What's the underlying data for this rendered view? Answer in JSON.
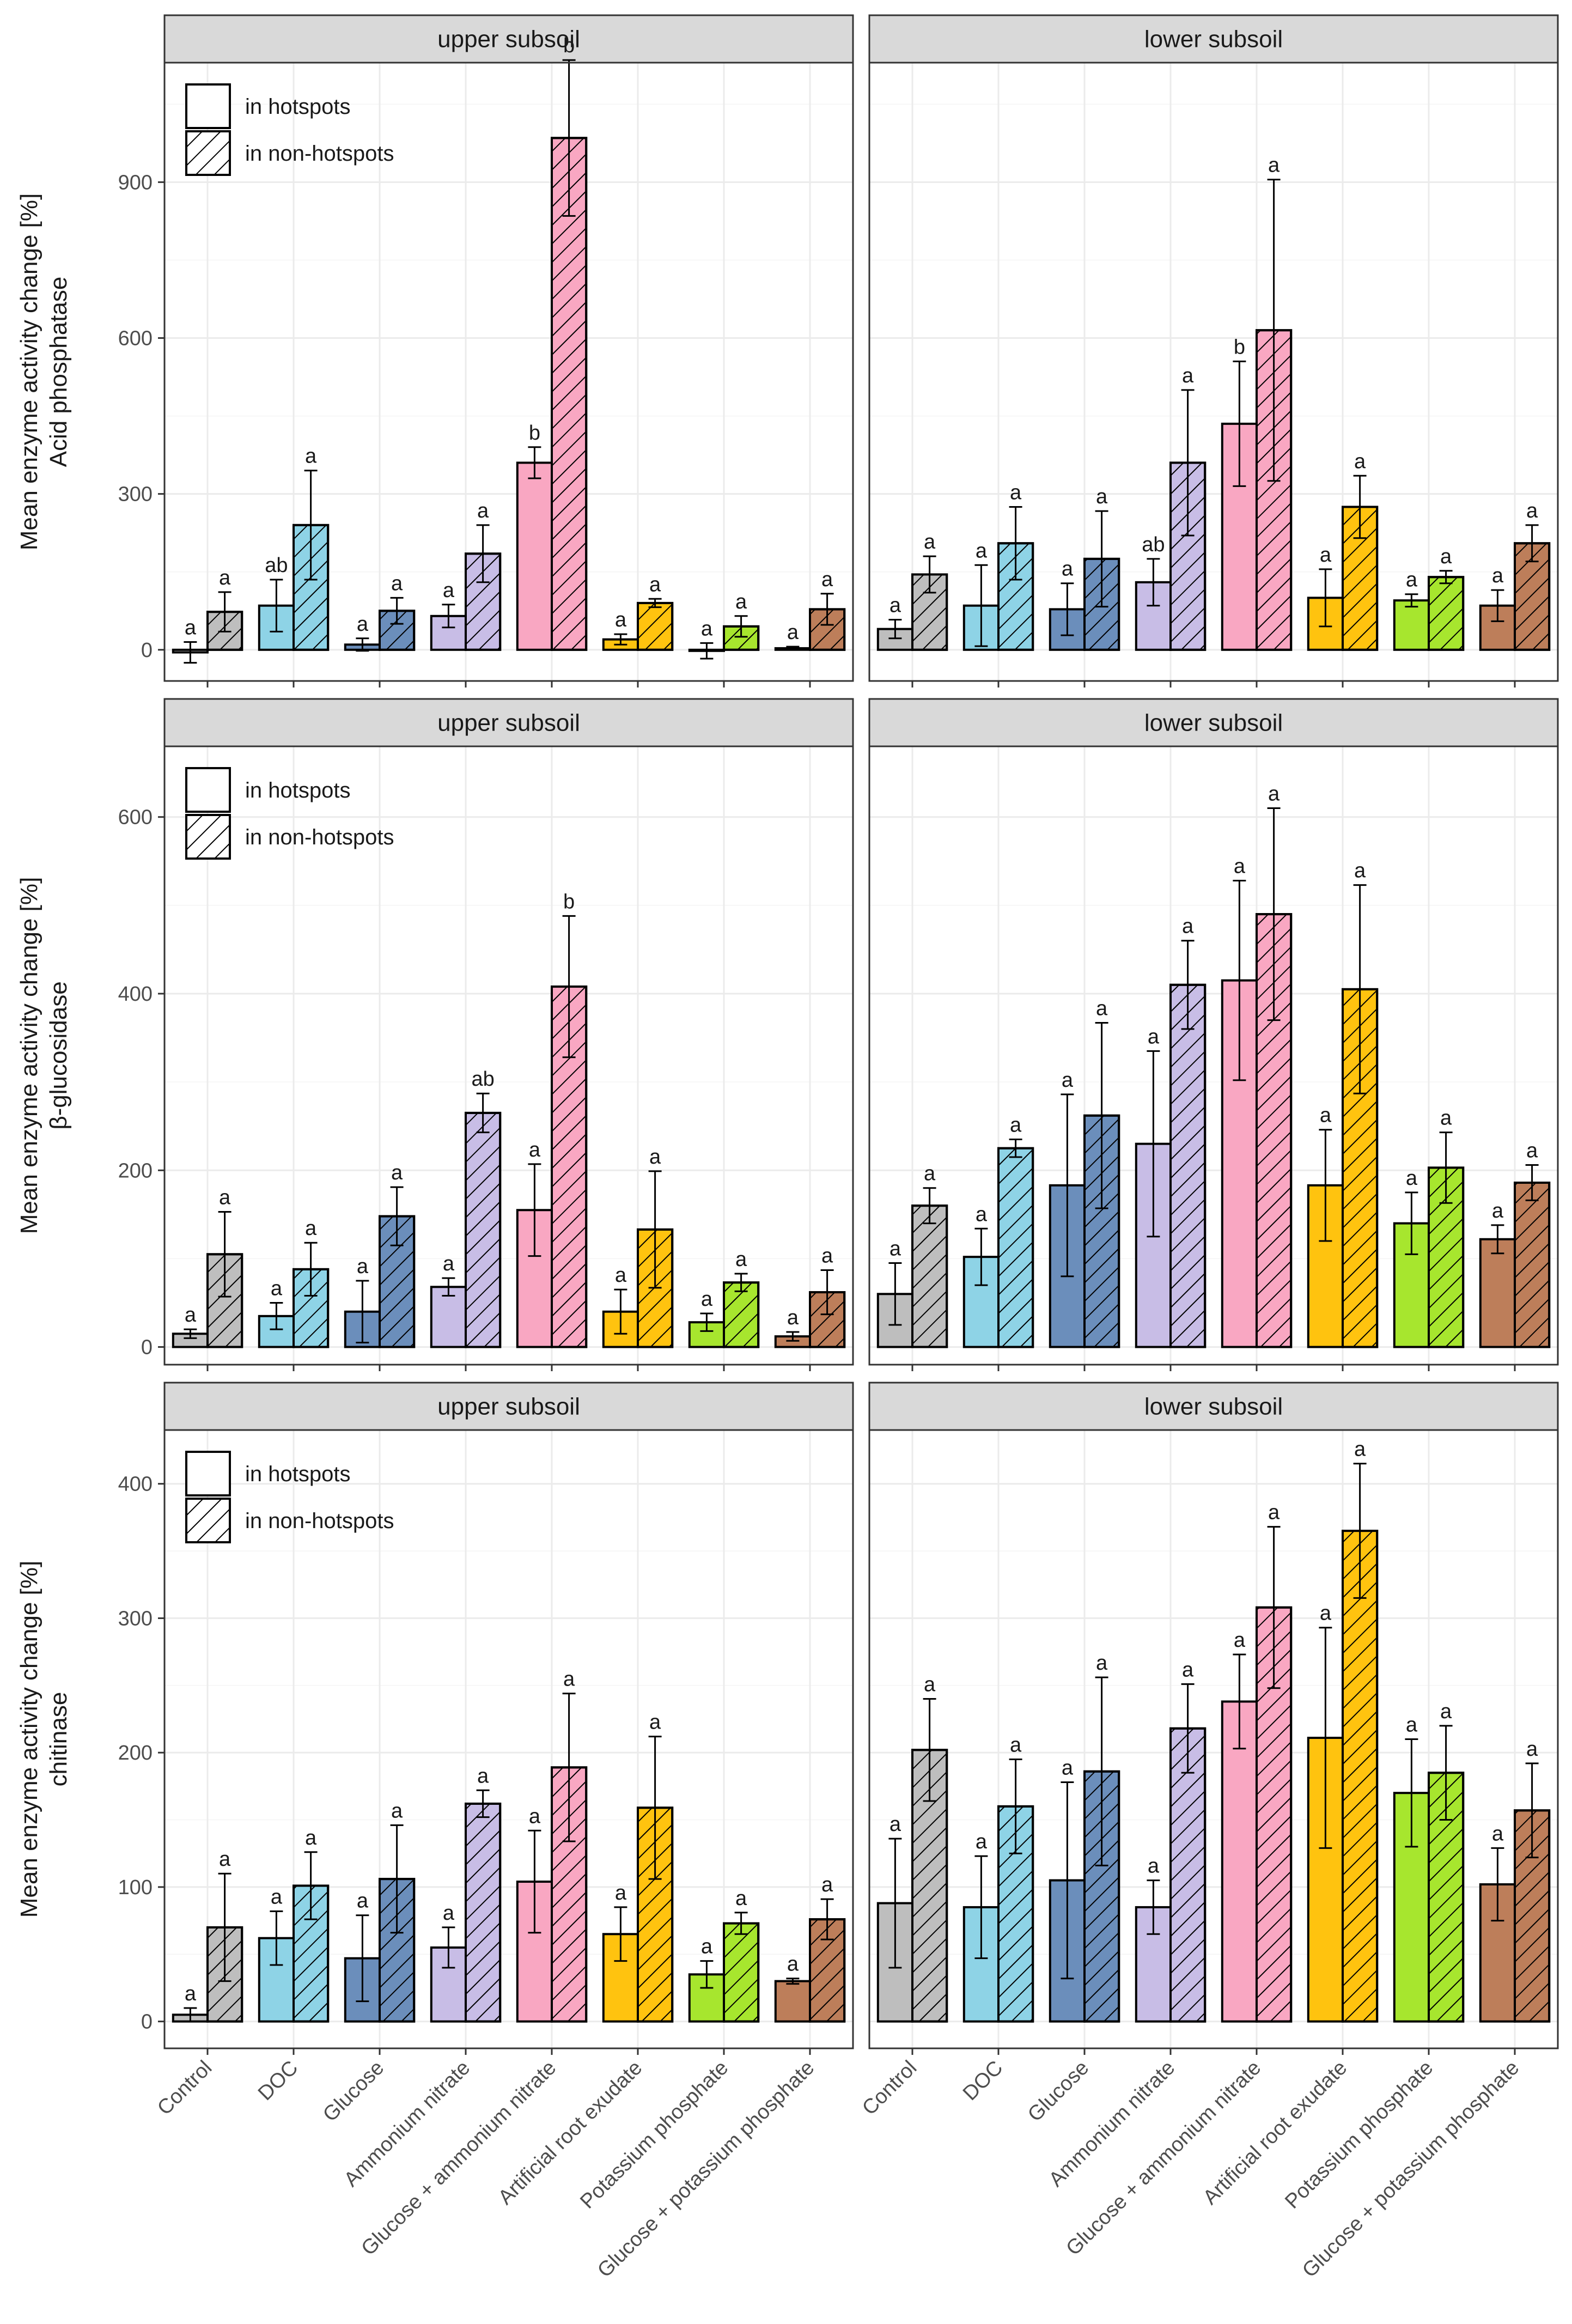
{
  "chart_data": {
    "type": "bar",
    "facet_rows": [
      "Acid phosphatase",
      "β-glucosidase",
      "chitinase"
    ],
    "facet_cols": [
      "upper subsoil",
      "lower subsoil"
    ],
    "ylabel_main": "Mean enzyme activity change [%]",
    "legend": {
      "position": "top-left",
      "items": [
        "in hotspots",
        "in non-hotspots"
      ]
    },
    "categories": [
      "Control",
      "DOC",
      "Glucose",
      "Ammonium nitrate",
      "Glucose + ammonium nitrate",
      "Artificial root exudate",
      "Potassium phosphate",
      "Glucose + potassium phosphate"
    ],
    "colors": [
      "#bebebe",
      "#8ed3e6",
      "#6b8ebb",
      "#c8bde6",
      "#f9a7c2",
      "#ffc30f",
      "#a7e62e",
      "#bd7e5a"
    ],
    "rows": [
      {
        "enzyme": "Acid phosphatase",
        "ylim": [
          -60,
          1130
        ],
        "yticks": [
          0,
          300,
          600,
          900
        ],
        "panels": [
          {
            "facet": "upper subsoil",
            "hot": [
              -5,
              85,
              10,
              65,
              360,
              20,
              -2,
              3
            ],
            "hot_err": [
              20,
              50,
              12,
              22,
              30,
              10,
              15,
              3
            ],
            "hot_sig": [
              "a",
              "ab",
              "a",
              "a",
              "b",
              "a",
              "a",
              "a"
            ],
            "non": [
              73,
              240,
              75,
              185,
              985,
              90,
              45,
              78
            ],
            "non_err": [
              38,
              105,
              25,
              55,
              150,
              8,
              20,
              30
            ],
            "non_sig": [
              "a",
              "a",
              "a",
              "a",
              "b",
              "a",
              "a",
              "a"
            ]
          },
          {
            "facet": "lower subsoil",
            "hot": [
              40,
              85,
              78,
              130,
              435,
              100,
              95,
              85
            ],
            "hot_err": [
              18,
              78,
              50,
              45,
              120,
              55,
              12,
              30
            ],
            "hot_sig": [
              "a",
              "a",
              "a",
              "ab",
              "b",
              "a",
              "a",
              "a"
            ],
            "non": [
              145,
              205,
              175,
              360,
              615,
              275,
              140,
              205
            ],
            "non_err": [
              35,
              70,
              92,
              140,
              290,
              60,
              12,
              35
            ],
            "non_sig": [
              "a",
              "a",
              "a",
              "a",
              "a",
              "a",
              "a",
              "a"
            ]
          }
        ]
      },
      {
        "enzyme": "β-glucosidase",
        "ylim": [
          -20,
          680
        ],
        "yticks": [
          0,
          200,
          400,
          600
        ],
        "panels": [
          {
            "facet": "upper subsoil",
            "hot": [
              15,
              35,
              40,
              68,
              155,
              40,
              28,
              12
            ],
            "hot_err": [
              5,
              15,
              35,
              10,
              52,
              25,
              10,
              5
            ],
            "hot_sig": [
              "a",
              "a",
              "a",
              "a",
              "a",
              "a",
              "a",
              "a"
            ],
            "non": [
              105,
              88,
              148,
              265,
              408,
              133,
              73,
              62
            ],
            "non_err": [
              48,
              30,
              33,
              22,
              80,
              66,
              10,
              25
            ],
            "non_sig": [
              "a",
              "a",
              "a",
              "ab",
              "b",
              "a",
              "a",
              "a"
            ]
          },
          {
            "facet": "lower subsoil",
            "hot": [
              60,
              102,
              183,
              230,
              415,
              183,
              140,
              122
            ],
            "hot_err": [
              35,
              32,
              103,
              105,
              113,
              63,
              35,
              16
            ],
            "hot_sig": [
              "a",
              "a",
              "a",
              "a",
              "a",
              "a",
              "a",
              "a"
            ],
            "non": [
              160,
              225,
              262,
              410,
              490,
              405,
              203,
              186
            ],
            "non_err": [
              20,
              10,
              105,
              50,
              120,
              118,
              40,
              20
            ],
            "non_sig": [
              "a",
              "a",
              "a",
              "a",
              "a",
              "a",
              "a",
              "a"
            ]
          }
        ]
      },
      {
        "enzyme": "chitinase",
        "ylim": [
          -20,
          440
        ],
        "yticks": [
          0,
          100,
          200,
          300,
          400
        ],
        "panels": [
          {
            "facet": "upper subsoil",
            "hot": [
              5,
              62,
              47,
              55,
              104,
              65,
              35,
              30
            ],
            "hot_err": [
              5,
              20,
              32,
              15,
              38,
              20,
              10,
              2
            ],
            "hot_sig": [
              "a",
              "a",
              "a",
              "a",
              "a",
              "a",
              "a",
              "a"
            ],
            "non": [
              70,
              101,
              106,
              162,
              189,
              159,
              73,
              76
            ],
            "non_err": [
              40,
              25,
              40,
              10,
              55,
              53,
              8,
              15
            ],
            "non_sig": [
              "a",
              "a",
              "a",
              "a",
              "a",
              "a",
              "a",
              "a"
            ]
          },
          {
            "facet": "lower subsoil",
            "hot": [
              88,
              85,
              105,
              85,
              238,
              211,
              170,
              102
            ],
            "hot_err": [
              48,
              38,
              73,
              20,
              35,
              82,
              40,
              27
            ],
            "hot_sig": [
              "a",
              "a",
              "a",
              "a",
              "a",
              "a",
              "a",
              "a"
            ],
            "non": [
              202,
              160,
              186,
              218,
              308,
              365,
              185,
              157
            ],
            "non_err": [
              38,
              35,
              70,
              33,
              60,
              50,
              35,
              35
            ],
            "non_sig": [
              "a",
              "a",
              "a",
              "a",
              "a",
              "a",
              "a",
              "a"
            ]
          }
        ]
      }
    ]
  }
}
